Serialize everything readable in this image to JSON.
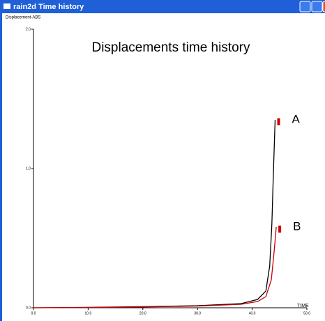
{
  "window": {
    "title": "rain2d Time history"
  },
  "chart_data": {
    "type": "line",
    "title": "Displacements time history",
    "y_label": "Displacement-ABS",
    "x_label": "TIME",
    "xlim": [
      0,
      50
    ],
    "xticks": [
      {
        "value": 0,
        "label": "0.0"
      },
      {
        "value": 10,
        "label": "10.0"
      },
      {
        "value": 20,
        "label": "20.0"
      },
      {
        "value": 30,
        "label": "30.0"
      },
      {
        "value": 40,
        "label": "40.0"
      },
      {
        "value": 50,
        "label": "50.0"
      }
    ],
    "ylim": [
      0,
      2
    ],
    "yticks": [
      {
        "value": 0,
        "label": "0.0"
      },
      {
        "value": 1,
        "label": "1.0"
      },
      {
        "value": 2,
        "label": "2.0"
      }
    ],
    "series": [
      {
        "name": "A",
        "color": "#000000",
        "x": [
          0,
          10,
          20,
          30,
          38,
          41,
          42.5,
          43.2,
          43.6,
          43.9,
          44.2
        ],
        "values": [
          0,
          0.003,
          0.008,
          0.015,
          0.03,
          0.06,
          0.12,
          0.3,
          0.6,
          1.0,
          1.35
        ]
      },
      {
        "name": "B",
        "color": "#cc0000",
        "x": [
          0,
          10,
          20,
          30,
          38,
          41,
          42.5,
          43.5,
          44,
          44.4
        ],
        "values": [
          0,
          0.002,
          0.006,
          0.012,
          0.025,
          0.045,
          0.08,
          0.2,
          0.4,
          0.58
        ]
      }
    ]
  }
}
